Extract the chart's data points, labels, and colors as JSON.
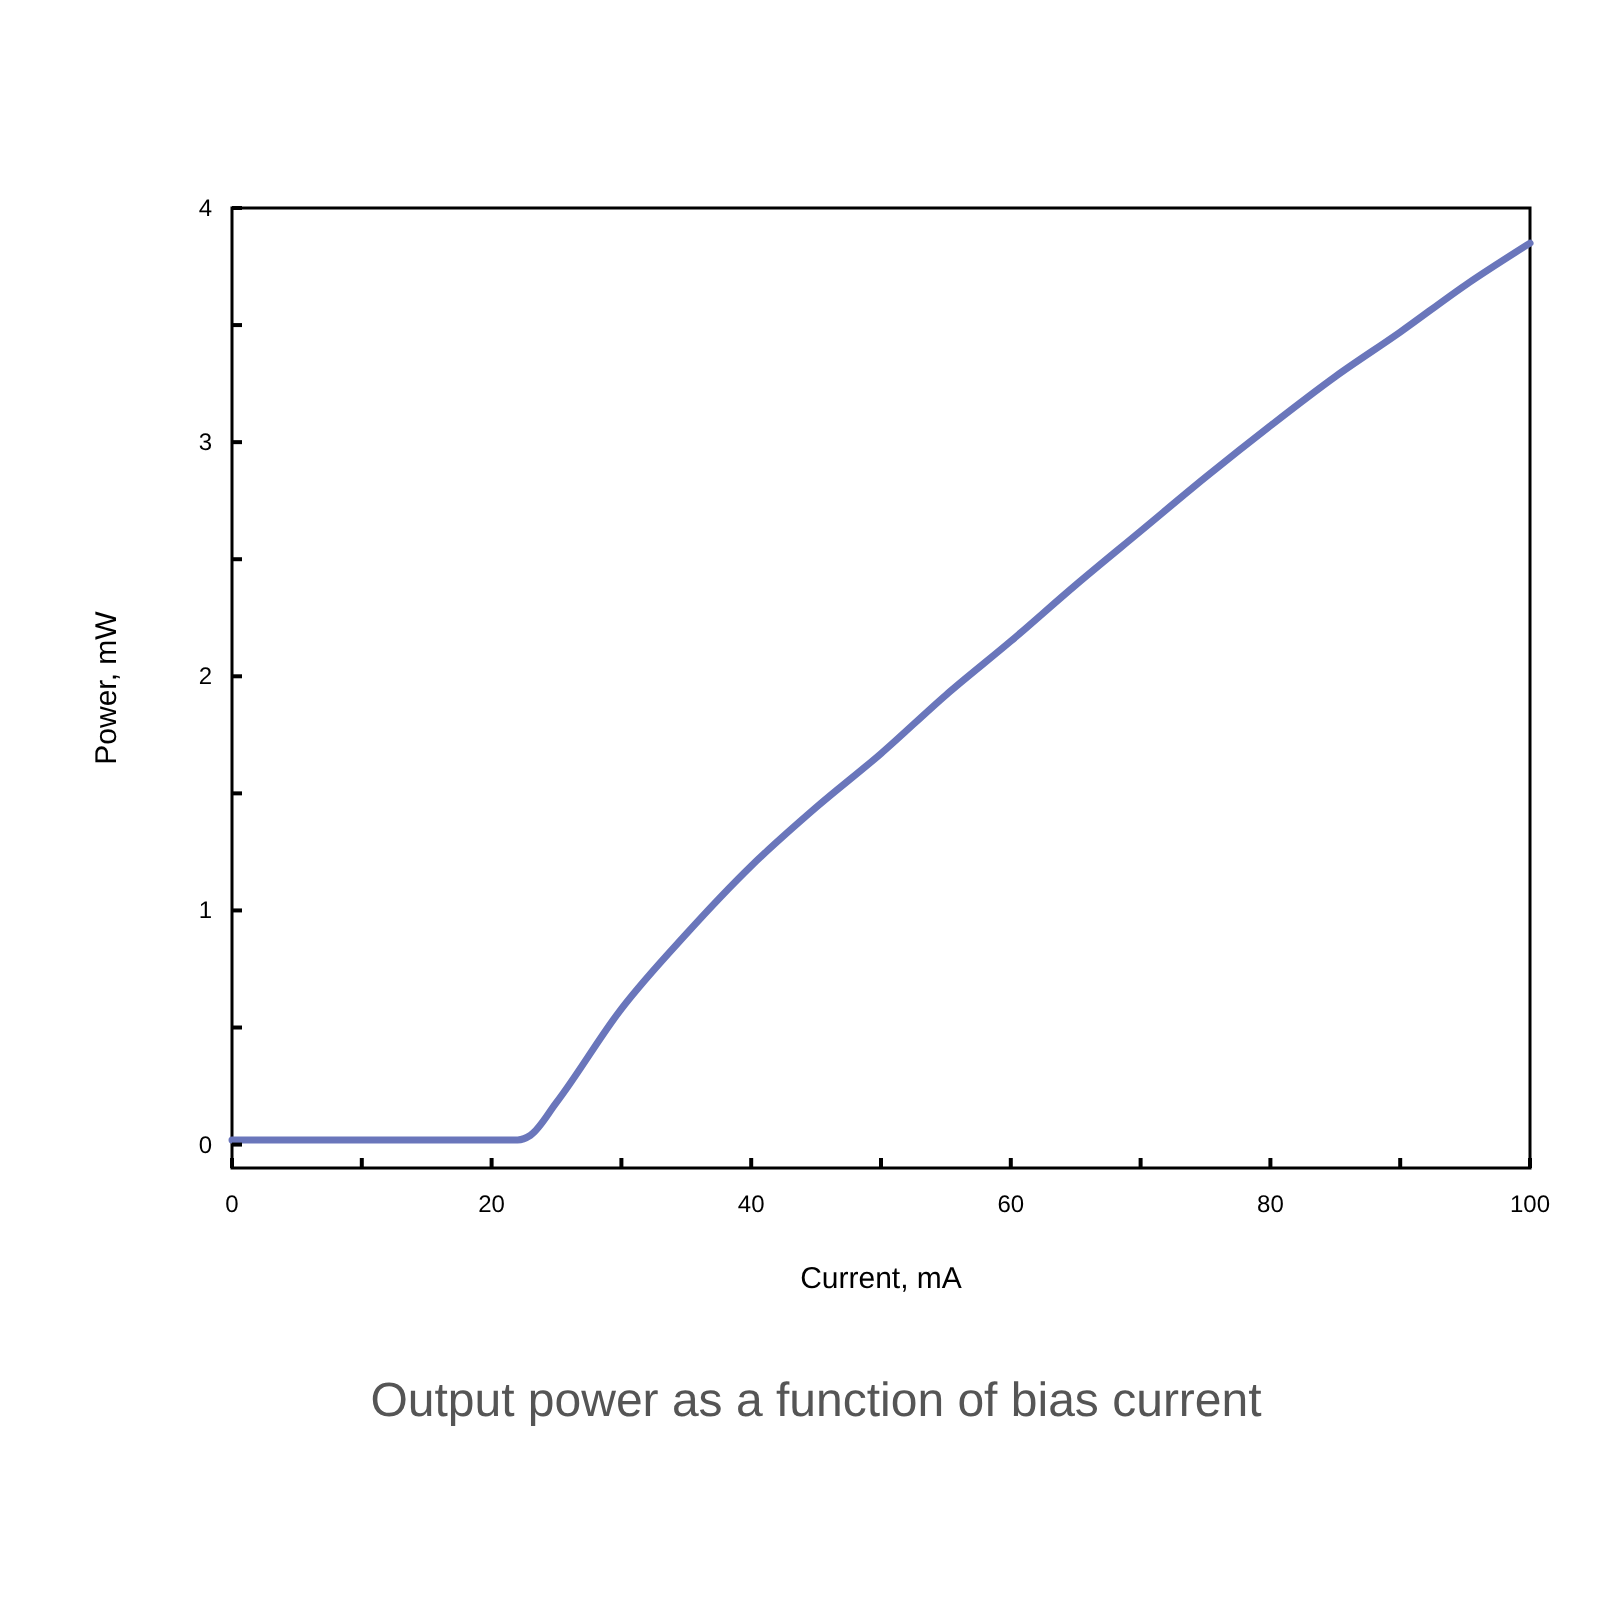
{
  "chart_data": {
    "type": "line",
    "xlabel": "Current, mA",
    "ylabel": "Power, mW",
    "annotations": [
      "Output power as a function of bias current"
    ],
    "x": [
      0,
      10,
      20,
      22,
      23,
      25,
      30,
      35,
      40,
      45,
      50,
      55,
      60,
      65,
      70,
      75,
      80,
      85,
      90,
      95,
      100
    ],
    "series": [
      {
        "color": "#6a76bb",
        "values": [
          0.02,
          0.02,
          0.02,
          0.02,
          0.04,
          0.18,
          0.58,
          0.9,
          1.19,
          1.44,
          1.67,
          1.92,
          2.15,
          2.39,
          2.62,
          2.85,
          3.07,
          3.28,
          3.47,
          3.67,
          3.85
        ]
      }
    ],
    "xlim": [
      0,
      100
    ],
    "ylim": [
      -0.1,
      4
    ],
    "xticks": [
      0,
      {
        "value": 10,
        "label": null
      },
      20,
      {
        "value": 30,
        "label": null
      },
      40,
      {
        "value": 50,
        "label": null
      },
      60,
      {
        "value": 70,
        "label": null
      },
      80,
      {
        "value": 90,
        "label": null
      },
      100
    ],
    "yticks": [
      0,
      {
        "value": 0.5,
        "label": null
      },
      1,
      {
        "value": 1.5,
        "label": null
      },
      2,
      {
        "value": 2.5,
        "label": null
      },
      3,
      {
        "value": 3.5,
        "label": null
      },
      4
    ],
    "grid": false,
    "marker": "none",
    "line_style": "solid"
  }
}
